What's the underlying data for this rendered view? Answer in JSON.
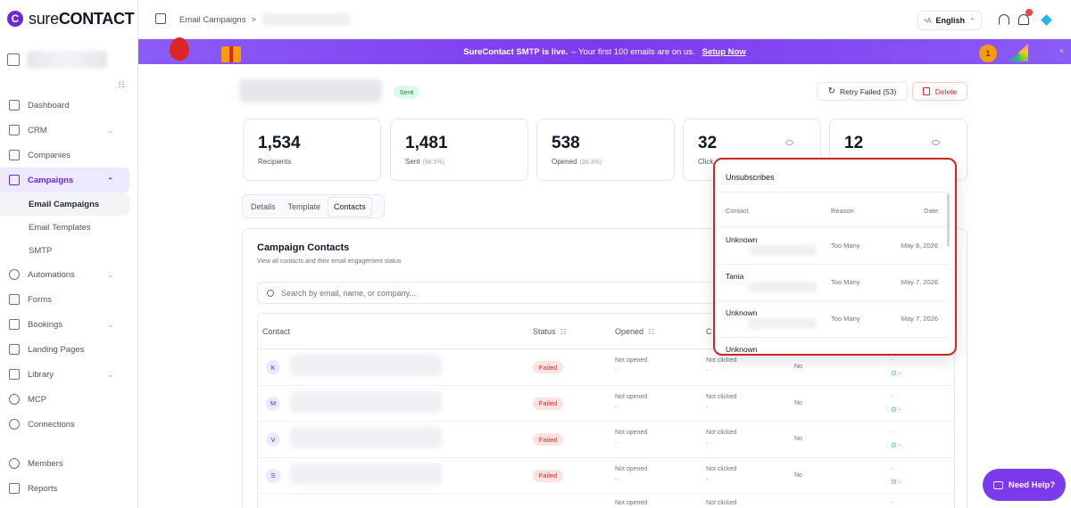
{
  "app": {
    "logo_mark": "C",
    "logo_bold": "sure",
    "logo_rest": "CONTACT"
  },
  "sidebar": {
    "items": [
      {
        "label": "Dashboard",
        "icon": "grid-icon"
      },
      {
        "label": "CRM",
        "icon": "contact-card-icon",
        "chevron": "⌄"
      },
      {
        "label": "Companies",
        "icon": "building-icon"
      },
      {
        "label": "Campaigns",
        "icon": "megaphone-icon",
        "chevron": "⌃"
      },
      {
        "label": "Automations",
        "icon": "flow-icon",
        "chevron": "⌄"
      },
      {
        "label": "Forms",
        "icon": "form-icon"
      },
      {
        "label": "Bookings",
        "icon": "calendar-icon",
        "chevron": "⌄"
      },
      {
        "label": "Landing Pages",
        "icon": "layout-icon"
      },
      {
        "label": "Library",
        "icon": "library-icon",
        "chevron": "⌄"
      },
      {
        "label": "MCP",
        "icon": "mcp-icon"
      },
      {
        "label": "Connections",
        "icon": "plug-icon"
      },
      {
        "label": "Members",
        "icon": "users-icon"
      },
      {
        "label": "Reports",
        "icon": "chart-icon"
      }
    ],
    "sub_items": [
      "Email Campaigns",
      "Email Templates",
      "SMTP"
    ]
  },
  "topbar": {
    "breadcrumb_root": "Email Campaigns",
    "breadcrumb_sep": ">",
    "lang_glyph": "ᵃA",
    "language": "English",
    "lang_caret": "⌃"
  },
  "banner": {
    "bold": "SureContact SMTP is live.",
    "text": "– Your first 100 emails are on us.",
    "link": "Setup Now",
    "medal": "1",
    "close": "×"
  },
  "header": {
    "status": "Sent",
    "retry_icon": "↻",
    "retry_label": "Retry Failed (53)",
    "delete_label": "Delete"
  },
  "stats": [
    {
      "value": "1,534",
      "label": "Recipients",
      "pct": ""
    },
    {
      "value": "1,481",
      "label": "Sent",
      "pct": "(96.5%)"
    },
    {
      "value": "538",
      "label": "Opened",
      "pct": "(36.3%)"
    },
    {
      "value": "32",
      "label": "Click",
      "pct": ""
    },
    {
      "value": "12",
      "label": "",
      "pct": ""
    }
  ],
  "tabs": [
    "Details",
    "Template",
    "Contacts"
  ],
  "contacts": {
    "title": "Campaign Contacts",
    "subtitle": "View all contacts and their email engagement status",
    "search_placeholder": "Search by email, name, or company...",
    "columns": {
      "contact": "Contact",
      "status": "Status",
      "opened": "Opened",
      "clicked": "C",
      "filter_glyph": "☷"
    },
    "rows": [
      {
        "initial": "K",
        "status": "Failed",
        "opened": "Not opened",
        "clicked": "Not clicked",
        "unsub": "No",
        "dash": "-",
        "last": "-",
        "green": "⊙ -"
      },
      {
        "initial": "M",
        "status": "Failed",
        "opened": "Not opened",
        "clicked": "Not clicked",
        "unsub": "No",
        "dash": "-",
        "last": "-",
        "green": "⊙ -"
      },
      {
        "initial": "V",
        "status": "Failed",
        "opened": "Not opened",
        "clicked": "Not clicked",
        "unsub": "No",
        "dash": "-",
        "last": "-",
        "green": "⊙ -"
      },
      {
        "initial": "S",
        "status": "Failed",
        "opened": "Not opened",
        "clicked": "Not clicked",
        "unsub": "No",
        "dash": "-",
        "last": "-",
        "green": "⊙ -"
      },
      {
        "initial": "",
        "status": "",
        "opened": "Not opened",
        "clicked": "Not clicked",
        "unsub": "",
        "dash": "",
        "last": "-",
        "green": ""
      }
    ]
  },
  "popover": {
    "title": "Unsubscribes",
    "columns": {
      "contact": "Contact",
      "reason": "Reason",
      "date": "Date"
    },
    "rows": [
      {
        "name": "Unknown",
        "reason": "Too Many",
        "date": "May 8, 2026"
      },
      {
        "name": "Tania",
        "reason": "Too Many",
        "date": "May 7, 2026"
      },
      {
        "name": "Unknown",
        "reason": "Too Many",
        "date": "May 7, 2026"
      },
      {
        "name": "Unknown",
        "reason": "",
        "date": ""
      }
    ]
  },
  "help": {
    "label": "Need Help?"
  },
  "colors": {
    "brand": "#7c3aed",
    "failed": "#dc2626",
    "sent": "#15803d",
    "highlight": "#c62828"
  }
}
